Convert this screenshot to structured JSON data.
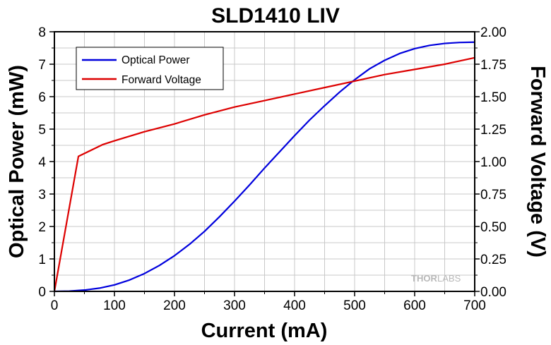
{
  "chart_data": {
    "type": "line",
    "title": "SLD1410 LIV",
    "xlabel": "Current (mA)",
    "ylabel": "Optical Power (mW)",
    "y2label": "Forward Voltage (V)",
    "xlim": [
      0,
      700
    ],
    "ylim": [
      0,
      8
    ],
    "y2lim": [
      0,
      2
    ],
    "xticks": [
      0,
      100,
      200,
      300,
      400,
      500,
      600,
      700
    ],
    "xtick_labels": [
      "0",
      "100",
      "200",
      "300",
      "400",
      "500",
      "600",
      "700"
    ],
    "yticks": [
      0,
      1,
      2,
      3,
      4,
      5,
      6,
      7,
      8
    ],
    "ytick_labels": [
      "0",
      "1",
      "2",
      "3",
      "4",
      "5",
      "6",
      "7",
      "8"
    ],
    "y2ticks": [
      0,
      0.25,
      0.5,
      0.75,
      1.0,
      1.25,
      1.5,
      1.75,
      2.0
    ],
    "y2tick_labels": [
      "0.00",
      "0.25",
      "0.50",
      "0.75",
      "1.00",
      "1.25",
      "1.50",
      "1.75",
      "2.00"
    ],
    "grid": true,
    "legend_position": "top-left",
    "watermark": "THORLABS",
    "series": [
      {
        "name": "Optical Power",
        "axis": "left",
        "color": "#0000dd",
        "x": [
          0,
          25,
          50,
          75,
          100,
          125,
          150,
          175,
          200,
          225,
          250,
          275,
          300,
          325,
          350,
          375,
          400,
          425,
          450,
          475,
          500,
          525,
          550,
          575,
          600,
          625,
          650,
          675,
          700
        ],
        "y": [
          0.0,
          0.01,
          0.04,
          0.1,
          0.2,
          0.35,
          0.55,
          0.8,
          1.1,
          1.45,
          1.85,
          2.3,
          2.78,
          3.28,
          3.8,
          4.3,
          4.8,
          5.28,
          5.72,
          6.14,
          6.52,
          6.86,
          7.12,
          7.33,
          7.48,
          7.58,
          7.64,
          7.67,
          7.68
        ]
      },
      {
        "name": "Forward Voltage",
        "axis": "right",
        "color": "#dd0000",
        "x": [
          0,
          40,
          80,
          100,
          150,
          200,
          250,
          300,
          350,
          400,
          450,
          500,
          550,
          600,
          650,
          700
        ],
        "y": [
          0.0,
          1.04,
          1.13,
          1.16,
          1.23,
          1.29,
          1.36,
          1.42,
          1.47,
          1.52,
          1.57,
          1.62,
          1.67,
          1.71,
          1.75,
          1.8
        ]
      }
    ]
  }
}
